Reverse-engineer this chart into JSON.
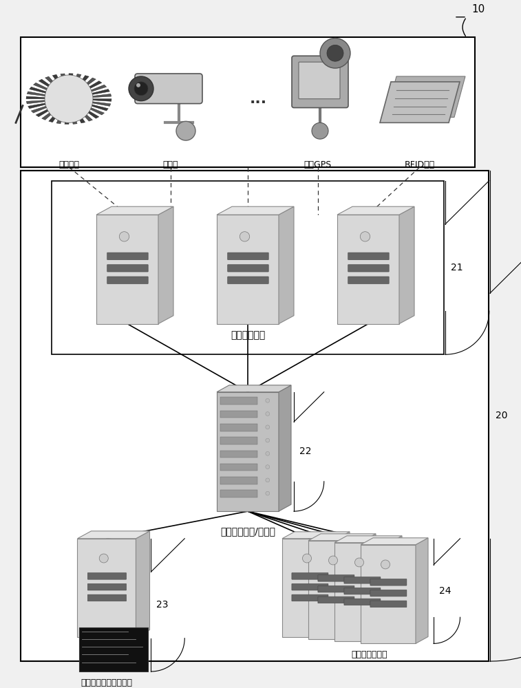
{
  "bg_color": "#f0f0f0",
  "white": "#ffffff",
  "black": "#000000",
  "server_front": "#d8d8d8",
  "server_side": "#b8b8b8",
  "server_top": "#e5e5e5",
  "server_slot": "#666666",
  "rack_front": "#c0c0c0",
  "rack_side": "#a0a0a0",
  "rack_top": "#d5d5d5",
  "label_10": "10",
  "label_20": "20",
  "label_21": "21",
  "label_22": "22",
  "label_23": "23",
  "label_24": "24",
  "sensor_labels": [
    "感应线圈",
    "摄像头",
    "车载GPS",
    "RFID车牌"
  ],
  "comm_label": "通信服务器组",
  "broker_label": "交通数据发布/订阅器",
  "history_label": "历史交通数据存储装置",
  "compute_label": "计算服务器集群",
  "dots": "..."
}
